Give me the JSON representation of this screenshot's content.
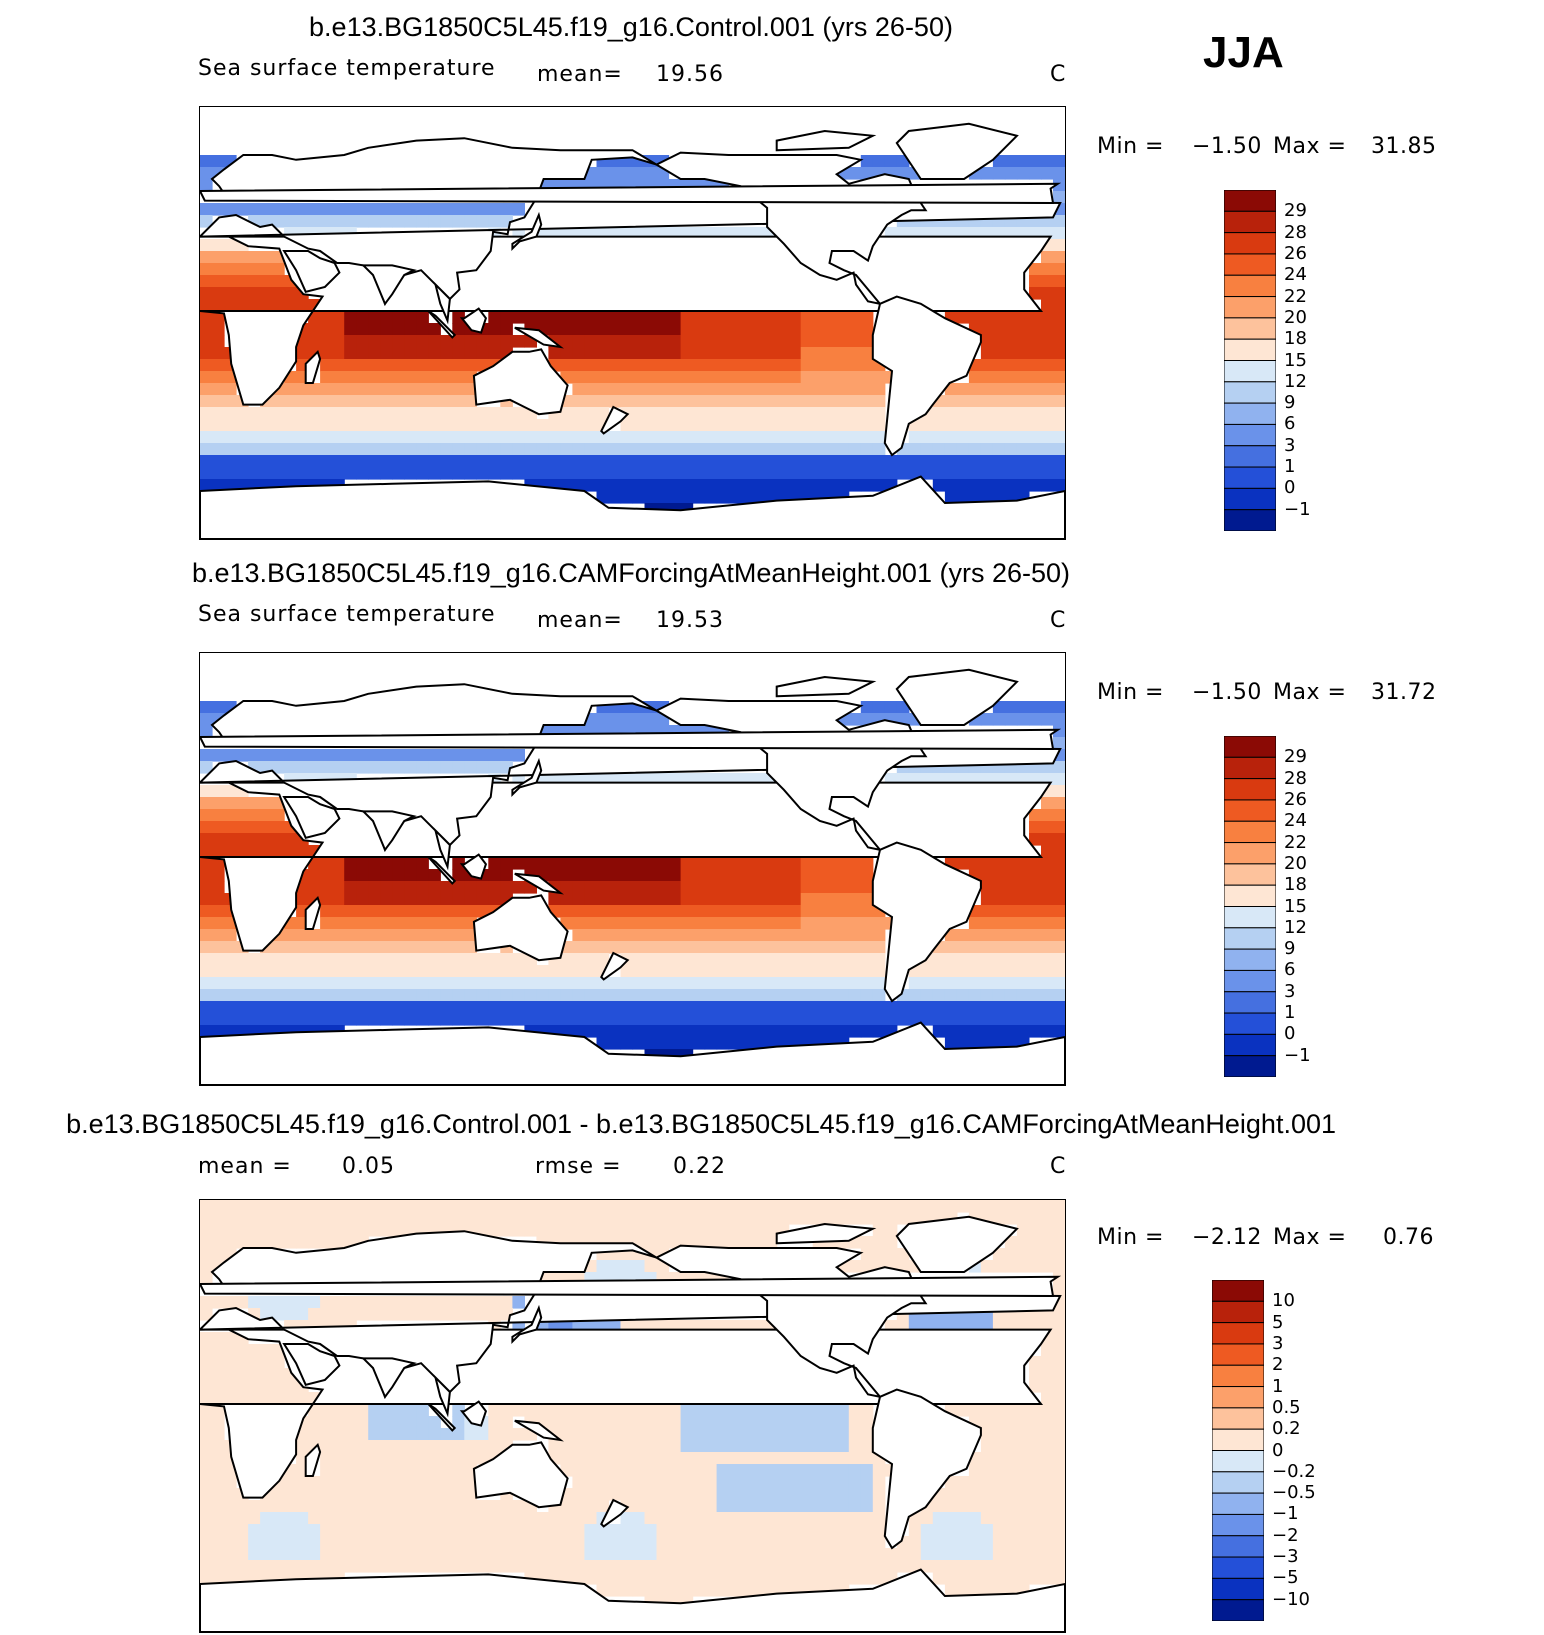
{
  "season": "JJA",
  "chart_data": [
    {
      "type": "heatmap",
      "title": "b.e13.BG1850C5L45.f19_g16.Control.001 (yrs 26-50)",
      "variable": "Sea surface temperature",
      "stat1_label": "mean=",
      "stat1_value": "19.56",
      "units": "C",
      "min_label": "Min =",
      "min_value": "−1.50",
      "max_label": "Max =",
      "max_value": "31.85",
      "levels": [
        "29",
        "28",
        "26",
        "24",
        "22",
        "20",
        "18",
        "15",
        "12",
        "9",
        "6",
        "3",
        "1",
        "0",
        "−1"
      ],
      "colors": [
        "#8b0a05",
        "#b8220b",
        "#d93a10",
        "#ee5a22",
        "#f88040",
        "#fca06a",
        "#fdc29c",
        "#fee6d4",
        "#d8e8f7",
        "#b5d0f2",
        "#90b2ef",
        "#6a92ea",
        "#4570e0",
        "#2450d8",
        "#0a32c0",
        "#001a90"
      ]
    },
    {
      "type": "heatmap",
      "title": "b.e13.BG1850C5L45.f19_g16.CAMForcingAtMeanHeight.001 (yrs 26-50)",
      "variable": "Sea surface temperature",
      "stat1_label": "mean=",
      "stat1_value": "19.53",
      "units": "C",
      "min_label": "Min =",
      "min_value": "−1.50",
      "max_label": "Max =",
      "max_value": "31.72",
      "levels": [
        "29",
        "28",
        "26",
        "24",
        "22",
        "20",
        "18",
        "15",
        "12",
        "9",
        "6",
        "3",
        "1",
        "0",
        "−1"
      ],
      "colors": [
        "#8b0a05",
        "#b8220b",
        "#d93a10",
        "#ee5a22",
        "#f88040",
        "#fca06a",
        "#fdc29c",
        "#fee6d4",
        "#d8e8f7",
        "#b5d0f2",
        "#90b2ef",
        "#6a92ea",
        "#4570e0",
        "#2450d8",
        "#0a32c0",
        "#001a90"
      ]
    },
    {
      "type": "heatmap",
      "title": "b.e13.BG1850C5L45.f19_g16.Control.001 - b.e13.BG1850C5L45.f19_g16.CAMForcingAtMeanHeight.001",
      "stat1_label": "mean =",
      "stat1_value": "0.05",
      "stat2_label": "rmse =",
      "stat2_value": "0.22",
      "units": "C",
      "min_label": "Min =",
      "min_value": "−2.12",
      "max_label": "Max =",
      "max_value": "0.76",
      "levels": [
        "10",
        "5",
        "3",
        "2",
        "1",
        "0.5",
        "0.2",
        "0",
        "−0.2",
        "−0.5",
        "−1",
        "−2",
        "−3",
        "−5",
        "−10"
      ],
      "colors": [
        "#8b0a05",
        "#b8220b",
        "#d93a10",
        "#ee5a22",
        "#f88040",
        "#fca06a",
        "#fdc29c",
        "#fee6d4",
        "#d8e8f7",
        "#b5d0f2",
        "#90b2ef",
        "#6a92ea",
        "#4570e0",
        "#2450d8",
        "#0a32c0",
        "#001a90"
      ]
    }
  ]
}
